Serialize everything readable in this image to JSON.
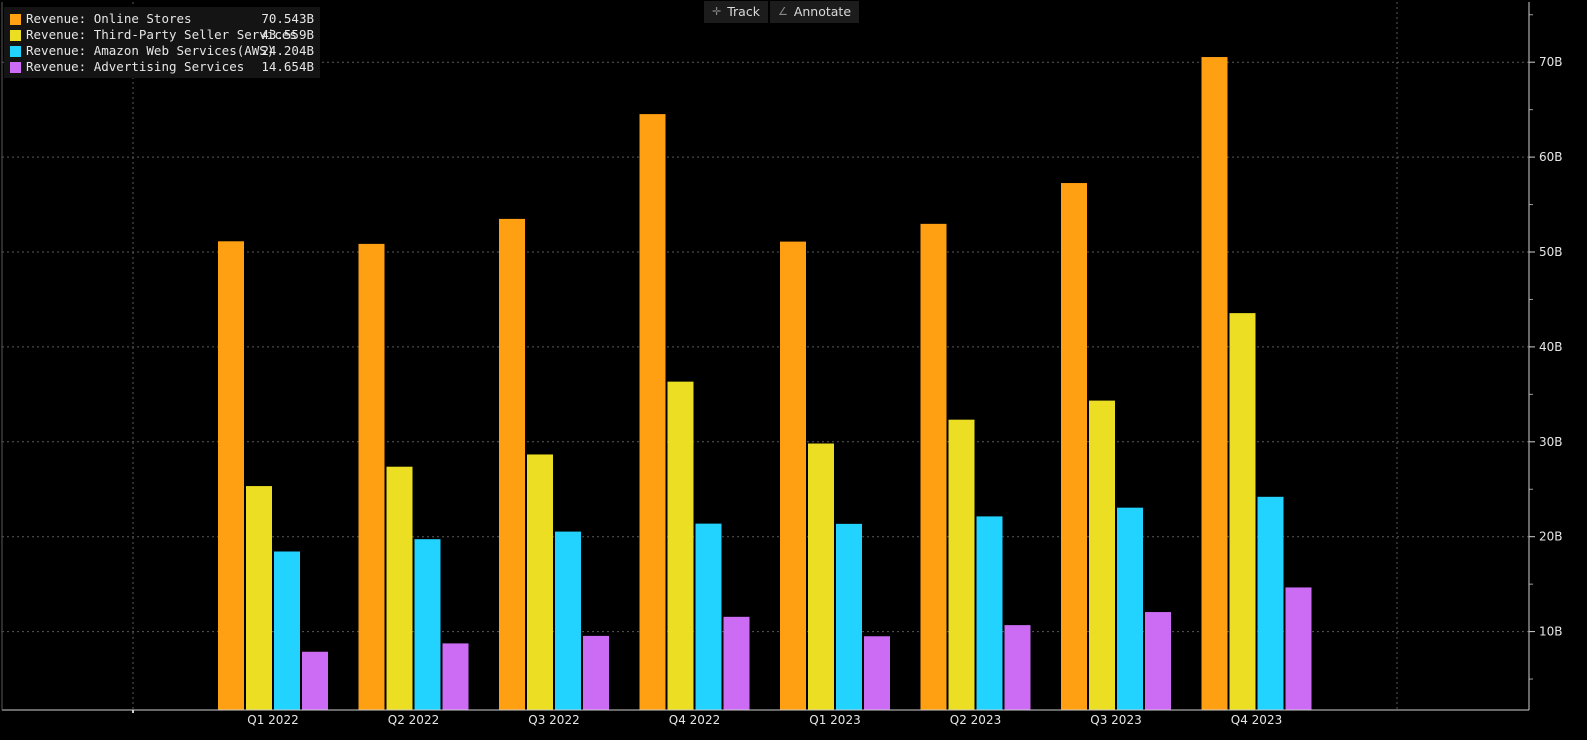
{
  "toolbar": {
    "track_label": "Track",
    "annotate_label": "Annotate"
  },
  "chart_data": {
    "type": "bar",
    "categories": [
      "Q1 2022",
      "Q2 2022",
      "Q3 2022",
      "Q4 2022",
      "Q1 2023",
      "Q2 2023",
      "Q3 2023",
      "Q4 2023"
    ],
    "series": [
      {
        "name": "Revenue: Online Stores",
        "color": "#ff9f12",
        "last_value": "70.543B",
        "values": [
          51.129,
          50.855,
          53.489,
          64.531,
          51.096,
          52.966,
          57.267,
          70.543
        ]
      },
      {
        "name": "Revenue: Third-Party Seller Services",
        "color": "#ecde22",
        "last_value": "43.559B",
        "values": [
          25.335,
          27.376,
          28.666,
          36.339,
          29.82,
          32.332,
          34.342,
          43.559
        ]
      },
      {
        "name": "Revenue: Amazon Web Services(AWS)",
        "color": "#22d2ff",
        "last_value": "24.204B",
        "values": [
          18.441,
          19.739,
          20.538,
          21.378,
          21.354,
          22.14,
          23.059,
          24.204
        ]
      },
      {
        "name": "Revenue: Advertising Services",
        "color": "#cc6cf5",
        "last_value": "14.654B",
        "values": [
          7.877,
          8.757,
          9.548,
          11.557,
          9.509,
          10.683,
          12.06,
          14.654
        ]
      }
    ],
    "y_ticks": [
      "10B",
      "20B",
      "30B",
      "40B",
      "50B",
      "60B",
      "70B"
    ],
    "y_tick_values": [
      10,
      20,
      30,
      40,
      50,
      60,
      70
    ],
    "ylim": [
      0,
      74
    ],
    "y_axis_side": "right",
    "grid": true,
    "legend_placement": "top-left",
    "title": "",
    "xlabel": "",
    "ylabel": ""
  }
}
